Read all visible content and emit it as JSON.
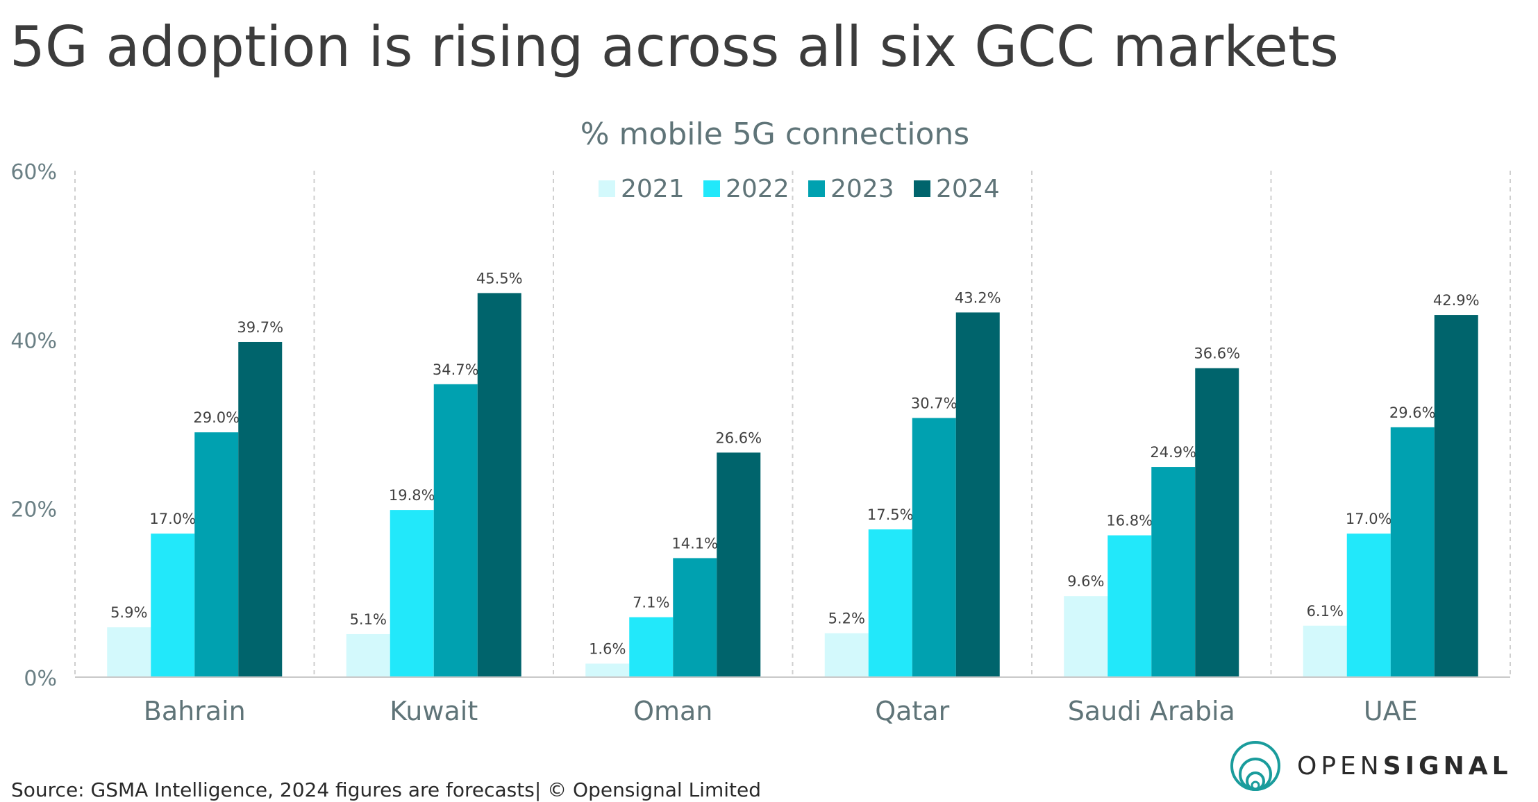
{
  "title": "5G adoption is rising across all six GCC markets",
  "source": "Source: GSMA Intelligence, 2024 figures are forecasts| © Opensignal Limited",
  "brand": {
    "wordmark_light": "OPEN",
    "wordmark_bold": "SIGNAL",
    "logo_icon": "concentric-circles-icon",
    "color": "#1a9c9c"
  },
  "chart_data": {
    "type": "bar",
    "title": "% mobile 5G connections",
    "xlabel": "",
    "ylabel": "",
    "ylim": [
      0,
      60
    ],
    "y_ticks": [
      0,
      20,
      40,
      60
    ],
    "y_tick_labels": [
      "0%",
      "20%",
      "40%",
      "60%"
    ],
    "grid": false,
    "category_separators": "dashed vertical",
    "legend_position": "top-center",
    "categories": [
      "Bahrain",
      "Kuwait",
      "Oman",
      "Qatar",
      "Saudi Arabia",
      "UAE"
    ],
    "series": [
      {
        "name": "2021",
        "color": "#d3f9fc",
        "values": [
          5.9,
          5.1,
          1.6,
          5.2,
          9.6,
          6.1
        ],
        "labels": [
          "5.9%",
          "5.1%",
          "1.6%",
          "5.2%",
          "9.6%",
          "6.1%"
        ]
      },
      {
        "name": "2022",
        "color": "#22e8fa",
        "values": [
          17.0,
          19.8,
          7.1,
          17.5,
          16.8,
          17.0
        ],
        "labels": [
          "17.0%",
          "19.8%",
          "7.1%",
          "17.5%",
          "16.8%",
          "17.0%"
        ]
      },
      {
        "name": "2023",
        "color": "#00a1b0",
        "values": [
          29.0,
          34.7,
          14.1,
          30.7,
          24.9,
          29.6
        ],
        "labels": [
          "29.0%",
          "34.7%",
          "14.1%",
          "30.7%",
          "24.9%",
          "29.6%"
        ]
      },
      {
        "name": "2024",
        "color": "#00646c",
        "values": [
          39.7,
          45.5,
          26.6,
          43.2,
          36.6,
          42.9
        ],
        "labels": [
          "39.7%",
          "45.5%",
          "26.6%",
          "43.2%",
          "36.6%",
          "42.9%"
        ]
      }
    ]
  }
}
